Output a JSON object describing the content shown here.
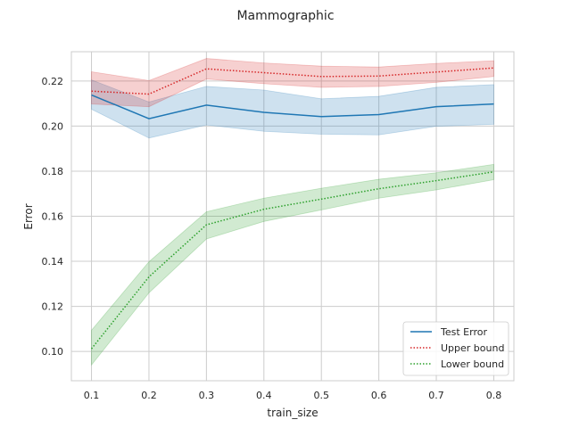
{
  "chart_data": {
    "type": "line",
    "title": "Mammographic",
    "xlabel": "train_size",
    "ylabel": "Error",
    "xlim": [
      0.065,
      0.835
    ],
    "ylim": [
      0.087,
      0.233
    ],
    "x": [
      0.1,
      0.2,
      0.3,
      0.4,
      0.5,
      0.6,
      0.7,
      0.8
    ],
    "x_ticks": [
      0.1,
      0.2,
      0.3,
      0.4,
      0.5,
      0.6,
      0.7,
      0.8
    ],
    "x_tick_labels": [
      "0.1",
      "0.2",
      "0.3",
      "0.4",
      "0.5",
      "0.6",
      "0.7",
      "0.8"
    ],
    "y_ticks": [
      0.1,
      0.12,
      0.14,
      0.16,
      0.18,
      0.2,
      0.22
    ],
    "y_tick_labels": [
      "0.10",
      "0.12",
      "0.14",
      "0.16",
      "0.18",
      "0.20",
      "0.22"
    ],
    "grid": true,
    "legend_position": "lower-right",
    "series": [
      {
        "name": "Test Error",
        "color": "#1f77b4",
        "dash": "solid",
        "values": [
          0.2138,
          0.2033,
          0.2093,
          0.2061,
          0.2042,
          0.2051,
          0.2086,
          0.2098
        ],
        "band_lower": [
          0.2075,
          0.1947,
          0.2005,
          0.1977,
          0.1964,
          0.1961,
          0.1999,
          0.2008
        ],
        "band_upper": [
          0.2205,
          0.2107,
          0.2176,
          0.216,
          0.2121,
          0.2132,
          0.2172,
          0.2184
        ]
      },
      {
        "name": "Upper bound",
        "color": "#d62728",
        "dash": "dotted",
        "values": [
          0.2155,
          0.2142,
          0.2254,
          0.2237,
          0.222,
          0.2222,
          0.224,
          0.2258
        ],
        "band_lower": [
          0.2098,
          0.2086,
          0.2209,
          0.2188,
          0.2172,
          0.2176,
          0.2194,
          0.222
        ],
        "band_upper": [
          0.2241,
          0.2202,
          0.23,
          0.228,
          0.2266,
          0.2262,
          0.2278,
          0.229
        ]
      },
      {
        "name": "Lower bound",
        "color": "#2ca02c",
        "dash": "dotted",
        "values": [
          0.1012,
          0.1331,
          0.1562,
          0.1631,
          0.1676,
          0.1722,
          0.1758,
          0.1797
        ],
        "band_lower": [
          0.094,
          0.126,
          0.1499,
          0.1577,
          0.1628,
          0.168,
          0.1717,
          0.1762
        ],
        "band_upper": [
          0.1094,
          0.1398,
          0.162,
          0.168,
          0.1724,
          0.1764,
          0.1793,
          0.183
        ]
      }
    ]
  }
}
